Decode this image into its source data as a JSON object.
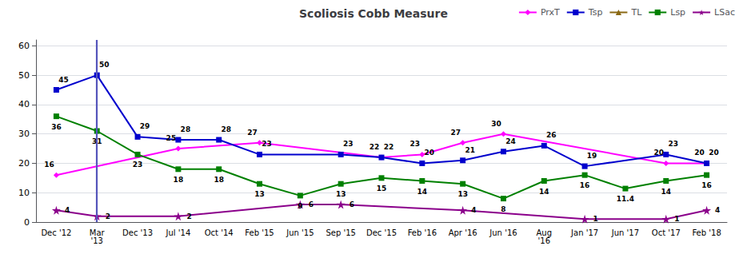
{
  "chart_data": {
    "type": "line",
    "title": "Scoliosis Cobb Measure",
    "categories": [
      "Dec '12",
      "Mar\n'13",
      "Dec '13",
      "Jul '14",
      "Oct '14",
      "Feb '15",
      "Jun '15",
      "Sep '15",
      "Dec '15",
      "Feb '16",
      "Apr '16",
      "Jun '16",
      "Aug\n'16",
      "Jan '17",
      "Jun '17",
      "Oct '17",
      "Feb '18"
    ],
    "series": [
      {
        "name": "PrxT",
        "color": "#FF00FF",
        "marker": "diamond",
        "values": [
          16,
          null,
          null,
          25,
          null,
          27,
          null,
          null,
          22,
          23,
          27,
          30,
          null,
          null,
          null,
          20,
          20
        ]
      },
      {
        "name": "Tsp",
        "color": "#0000CD",
        "marker": "square",
        "values": [
          45,
          50,
          29,
          28,
          28,
          23,
          null,
          23,
          22,
          20,
          21,
          24,
          26,
          19,
          null,
          23,
          20
        ]
      },
      {
        "name": "TL",
        "color": "#8B6914",
        "marker": "triangle",
        "values": [
          null,
          null,
          null,
          null,
          null,
          null,
          null,
          null,
          null,
          null,
          null,
          null,
          null,
          null,
          null,
          null,
          null
        ]
      },
      {
        "name": "Lsp",
        "color": "#008000",
        "marker": "square",
        "values": [
          36,
          31,
          23,
          18,
          18,
          13,
          9,
          13,
          15,
          14,
          13,
          8,
          14,
          16,
          11.4,
          14,
          16
        ]
      },
      {
        "name": "LSac",
        "color": "#8B008B",
        "marker": "star",
        "values": [
          4,
          2,
          null,
          2,
          null,
          null,
          6,
          6,
          null,
          null,
          4,
          null,
          null,
          1,
          null,
          1,
          4
        ]
      }
    ],
    "vline": {
      "category": "Mar\n'13",
      "color": "#5555BB"
    },
    "ylim": [
      0,
      62
    ],
    "yticks": [
      0,
      10,
      20,
      30,
      40,
      50,
      60
    ],
    "grid": true,
    "legend": "upper right",
    "data_labels": true
  }
}
